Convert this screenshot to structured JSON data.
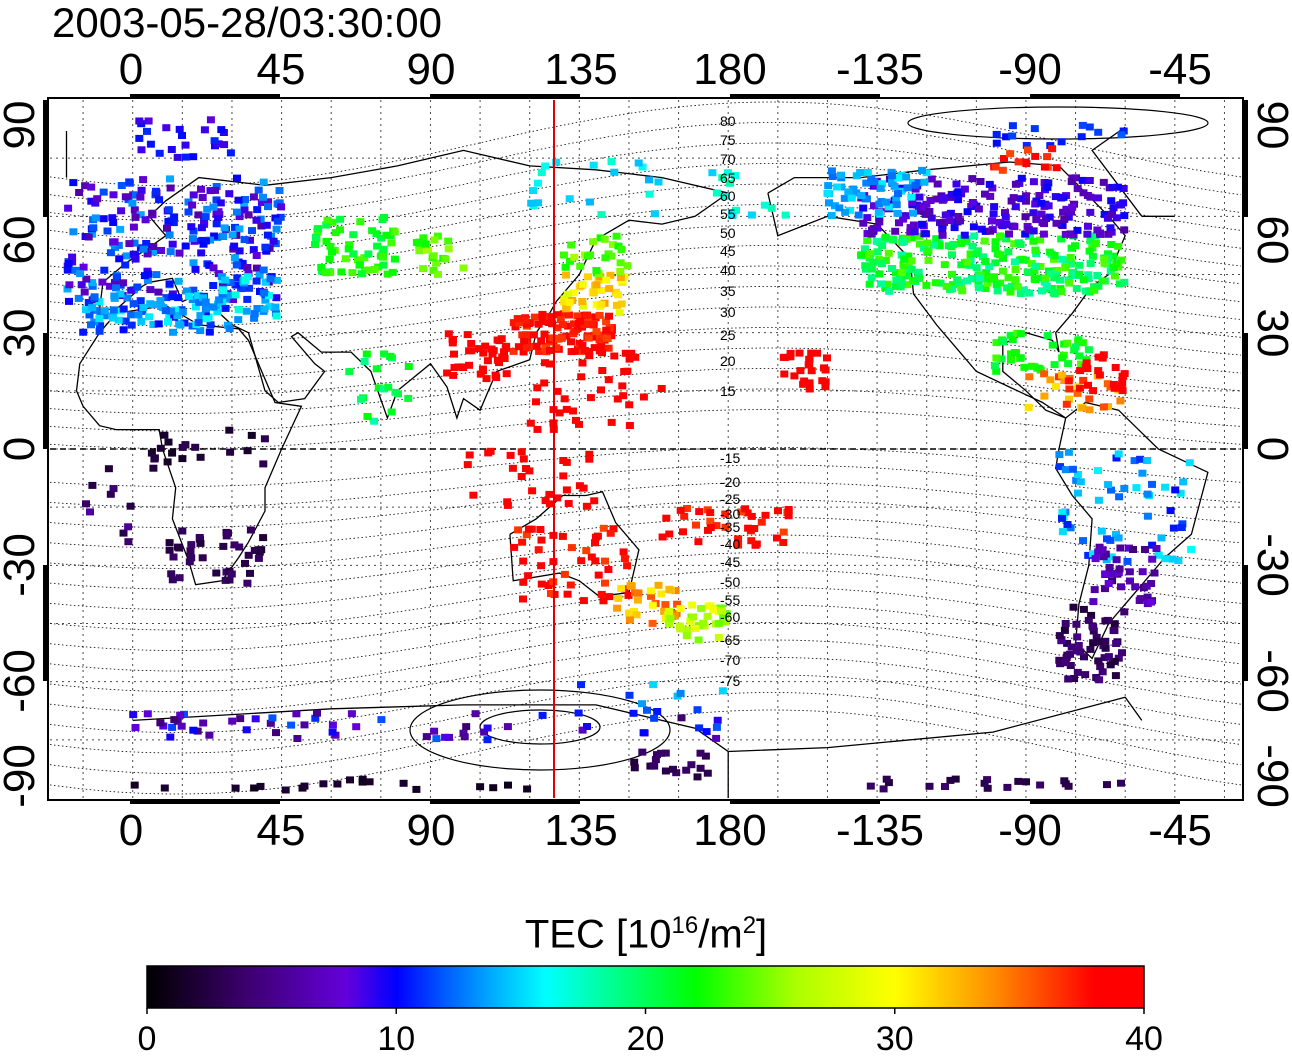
{
  "timestamp": "2003-05-28/03:30:00",
  "map": {
    "top_lon_labels": [
      "0",
      "45",
      "90",
      "135",
      "180",
      "-135",
      "-90",
      "-45"
    ],
    "bottom_lon_labels": [
      "0",
      "45",
      "90",
      "135",
      "180",
      "-135",
      "-90",
      "-45"
    ],
    "left_lat_labels": [
      "90",
      "60",
      "30",
      "0",
      "-30",
      "-60",
      "-90"
    ],
    "right_lat_labels": [
      "90",
      "60",
      "30",
      "0",
      "-30",
      "-60",
      "-90"
    ],
    "contour_labels": [
      "80",
      "75",
      "70",
      "65",
      "60",
      "55",
      "50",
      "45",
      "40",
      "35",
      "30",
      "25",
      "20",
      "15",
      "-15",
      "-20",
      "-25",
      "-30",
      "-35",
      "-40",
      "-45",
      "-50",
      "-55",
      "-60",
      "-65",
      "-70",
      "-75"
    ],
    "meridian_color": "#e00000"
  },
  "colorbar": {
    "title_prefix": "TEC  [10",
    "title_exp1": "16",
    "title_mid": "/m",
    "title_exp2": "2",
    "title_suffix": "]",
    "ticks": [
      "0",
      "10",
      "20",
      "30",
      "40"
    ],
    "colors": [
      "#000000",
      "#3a0070",
      "#6a00c8",
      "#0000ff",
      "#0090ff",
      "#00ffff",
      "#00ff80",
      "#00ff00",
      "#a0ff00",
      "#ffff00",
      "#ff9000",
      "#ff0000"
    ]
  }
}
